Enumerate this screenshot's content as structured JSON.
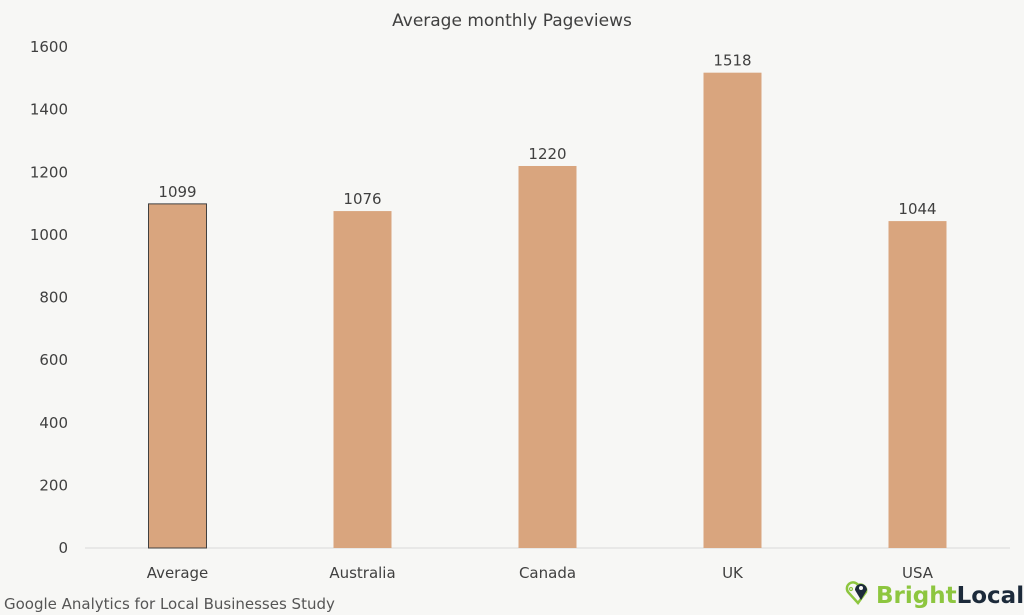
{
  "chart_data": {
    "type": "bar",
    "title": "Average monthly Pageviews",
    "categories": [
      "Average",
      "Australia",
      "Canada",
      "UK",
      "USA"
    ],
    "values": [
      1099,
      1076,
      1220,
      1518,
      1044
    ],
    "data_labels": [
      "1099",
      "1076",
      "1220",
      "1518",
      "1044"
    ],
    "ylim": [
      0,
      1600
    ],
    "yticks": [
      "0",
      "200",
      "400",
      "600",
      "800",
      "1000",
      "1200",
      "1400",
      "1600"
    ],
    "xlabel": "",
    "ylabel": "",
    "grid": false,
    "highlighted_bar": "Average",
    "colors": {
      "bar": "#d9a57e",
      "highlight_border": "#404040",
      "background": "#f7f7f5",
      "text": "#404040"
    }
  },
  "footer": {
    "source": "Google Analytics for Local Businesses Study",
    "logo": {
      "bright": "Bright",
      "local": "Local",
      "bright_color": "#8dc63f",
      "local_color": "#1c2a3a"
    }
  }
}
